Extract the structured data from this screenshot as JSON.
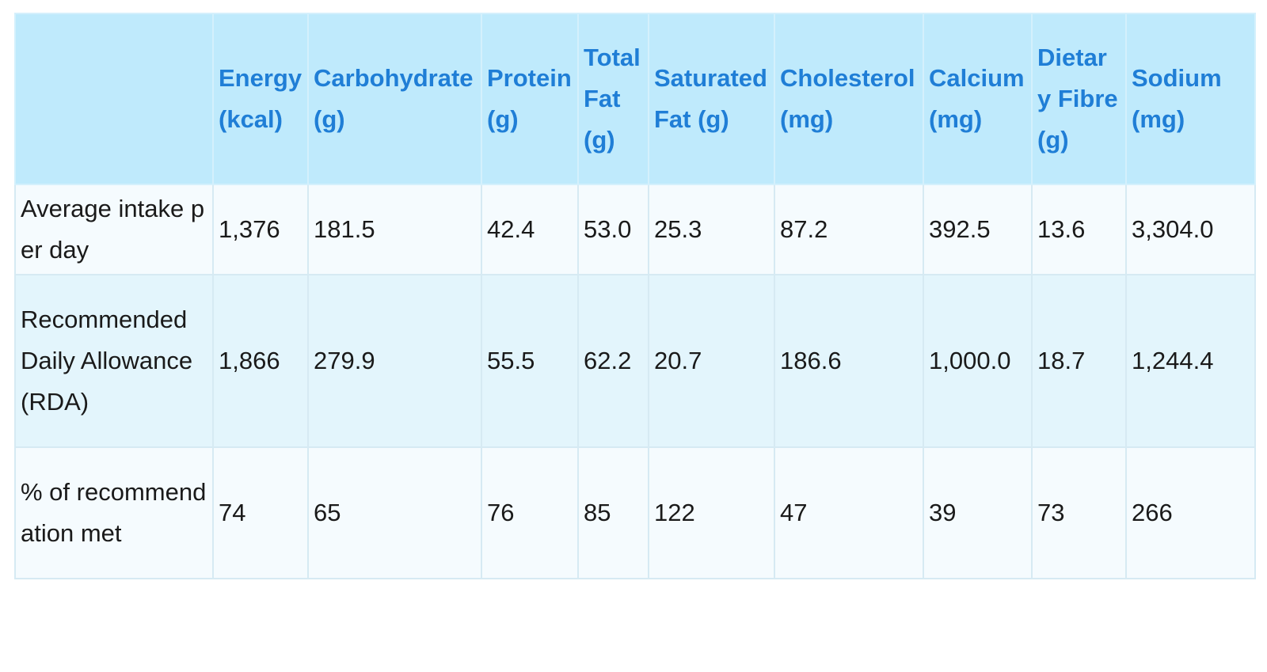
{
  "table": {
    "corner": "",
    "headers": [
      "Energy (kcal)",
      "Carbohydrate (g)",
      "Protein (g)",
      "Total Fat (g)",
      "Saturated Fat (g)",
      "Cholesterol (mg)",
      "Calcium (mg)",
      "Dietary Fibre (g)",
      "Sodium (mg)"
    ],
    "rows": [
      {
        "label": "Average intake per day",
        "values": [
          "1,376",
          "181.5",
          "42.4",
          "53.0",
          "25.3",
          "87.2",
          "392.5",
          "13.6",
          "3,304.0"
        ]
      },
      {
        "label": "Recommended Daily Allowance (RDA)",
        "values": [
          "1,866",
          "279.9",
          "55.5",
          "62.2",
          "20.7",
          "186.6",
          "1,000.0",
          "18.7",
          "1,244.4"
        ]
      },
      {
        "label": "% of recommendation met",
        "values": [
          "74",
          "65",
          "76",
          "85",
          "122",
          "47",
          "39",
          "73",
          "266"
        ]
      }
    ]
  },
  "colors": {
    "header_background": "#bfeafc",
    "header_text": "#1f7ed6",
    "row_light": "#f5fbfe",
    "row_alt": "#e3f5fc",
    "border": "#d6eaf3"
  }
}
